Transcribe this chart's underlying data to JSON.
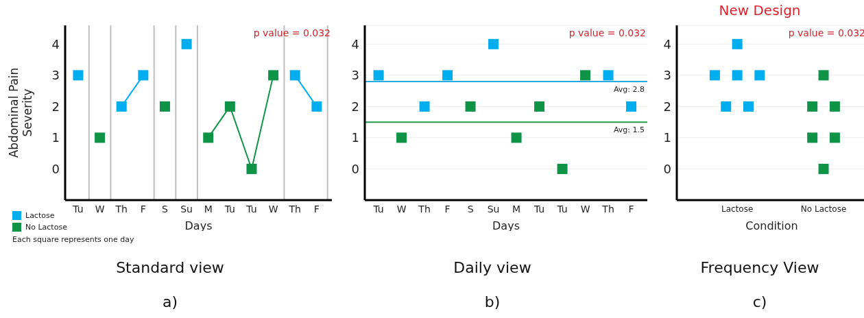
{
  "chart_data": [
    {
      "type": "line",
      "title": "Standard view",
      "xlabel": "Days",
      "ylabel": "Abdominal Pain Severity",
      "marker": "square",
      "line_style": "solid",
      "legend": "bottom left",
      "categories": [
        "Tu",
        "W",
        "Th",
        "F",
        "S",
        "Su",
        "M",
        "Tu",
        "Tu",
        "W",
        "Th",
        "F"
      ],
      "ylim": [
        -1,
        4.6
      ],
      "yticks": [
        0,
        1,
        2,
        3,
        4
      ],
      "series": [
        {
          "name": "Lactose",
          "color": "#00aeef",
          "values": [
            3,
            null,
            2,
            3,
            null,
            4,
            null,
            null,
            null,
            null,
            3,
            2
          ]
        },
        {
          "name": "No Lactose",
          "color": "#0f9447",
          "values": [
            null,
            1,
            null,
            null,
            2,
            null,
            1,
            2,
            0,
            3,
            null,
            null
          ]
        }
      ],
      "annotations": [
        "p value = 0.032",
        "Each square represents one day",
        "a)"
      ]
    },
    {
      "type": "scatter",
      "title": "Daily view",
      "xlabel": "Days",
      "marker": "square",
      "grid": "y",
      "categories": [
        "Tu",
        "W",
        "Th",
        "F",
        "S",
        "Su",
        "M",
        "Tu",
        "Tu",
        "W",
        "Th",
        "F"
      ],
      "ylim": [
        -1,
        4.6
      ],
      "yticks": [
        0,
        1,
        2,
        3,
        4
      ],
      "series": [
        {
          "color": "#00aeef",
          "values": [
            3,
            null,
            2,
            3,
            null,
            4,
            null,
            null,
            null,
            null,
            3,
            2
          ]
        },
        {
          "color": "#0f9447",
          "values": [
            null,
            1,
            null,
            null,
            2,
            null,
            1,
            2,
            0,
            3,
            null,
            null
          ]
        }
      ],
      "ref_lines": [
        {
          "axis": "y",
          "value": 2.8,
          "label": "Avg: 2.8",
          "color": "#29abe2"
        },
        {
          "axis": "y",
          "value": 1.5,
          "label": "Avg: 1.5",
          "color": "#1e9b4b"
        }
      ],
      "annotations": [
        "p value = 0.032",
        "b)"
      ]
    },
    {
      "type": "scatter",
      "title": "Frequency View",
      "subtitle": "New Design",
      "xlabel": "Condition",
      "marker": "square",
      "grid": "y",
      "categories": [
        "Lactose",
        "No Lactose"
      ],
      "ylim": [
        -1,
        4.6
      ],
      "yticks": [
        0,
        1,
        2,
        3,
        4
      ],
      "series": [
        {
          "color": "#00aeef",
          "x": [
            "Lactose",
            "Lactose",
            "Lactose",
            "Lactose",
            "Lactose",
            "Lactose"
          ],
          "values": [
            3,
            3,
            3,
            2,
            2,
            4
          ]
        },
        {
          "color": "#0f9447",
          "x": [
            "No Lactose",
            "No Lactose",
            "No Lactose",
            "No Lactose",
            "No Lactose",
            "No Lactose"
          ],
          "values": [
            3,
            2,
            2,
            1,
            1,
            0
          ]
        }
      ],
      "annotations": [
        "p value = 0.032",
        "c)"
      ]
    }
  ]
}
